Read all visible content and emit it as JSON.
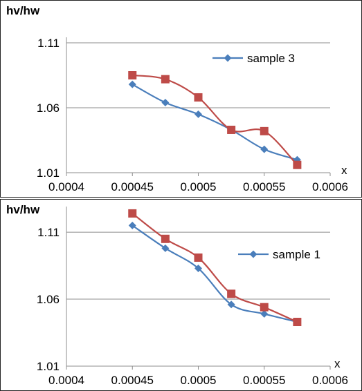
{
  "chart_data": [
    {
      "type": "line",
      "title": "",
      "ylabel": "hv/hw",
      "xlabel": "x",
      "xlim": [
        0.0004,
        0.0006
      ],
      "ylim": [
        1.01,
        1.11
      ],
      "x_ticks": [
        "0.0004",
        "0.00045",
        "0.0005",
        "0.00055",
        "0.0006"
      ],
      "y_ticks": [
        "1.11",
        "1.06",
        "1.01"
      ],
      "grid": "horizontal",
      "legend_position": "top-right",
      "x": [
        0.00045,
        0.000475,
        0.0005,
        0.000525,
        0.00055,
        0.000575
      ],
      "series": [
        {
          "name": "sample 3",
          "color": "#4a7ebb",
          "marker": "diamond",
          "values": [
            1.078,
            1.064,
            1.055,
            1.043,
            1.028,
            1.02
          ]
        },
        {
          "color": "#be4b48",
          "marker": "square",
          "values": [
            1.085,
            1.082,
            1.068,
            1.043,
            1.042,
            1.016
          ]
        }
      ]
    },
    {
      "type": "line",
      "title": "",
      "ylabel": "hv/hw",
      "xlabel": "x",
      "xlim": [
        0.0004,
        0.0006
      ],
      "ylim": [
        1.01,
        1.125
      ],
      "x_ticks": [
        "0.0004",
        "0.00045",
        "0.0005",
        "0.00055",
        "0.0006"
      ],
      "y_ticks": [
        "1.11",
        "1.06",
        "1.01"
      ],
      "grid": "horizontal",
      "legend_position": "right",
      "x": [
        0.00045,
        0.000475,
        0.0005,
        0.000525,
        0.00055,
        0.000575
      ],
      "series": [
        {
          "name": "sample 1",
          "color": "#4a7ebb",
          "marker": "diamond",
          "values": [
            1.115,
            1.098,
            1.083,
            1.056,
            1.049,
            1.043
          ]
        },
        {
          "color": "#be4b48",
          "marker": "square",
          "values": [
            1.124,
            1.105,
            1.091,
            1.064,
            1.054,
            1.043
          ]
        }
      ]
    }
  ]
}
